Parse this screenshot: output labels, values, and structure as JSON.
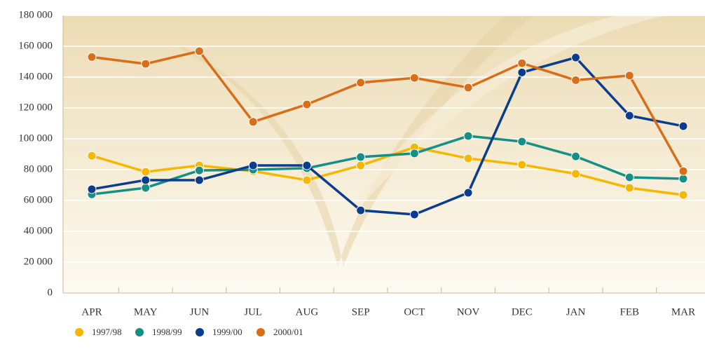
{
  "chart_data": {
    "type": "line",
    "categories": [
      "APR",
      "MAY",
      "JUN",
      "JUL",
      "AUG",
      "SEP",
      "OCT",
      "NOV",
      "DEC",
      "JAN",
      "FEB",
      "MAR"
    ],
    "series": [
      {
        "name": "1997/98",
        "color": "#f5b700",
        "values": [
          89000,
          78600,
          82700,
          79000,
          73200,
          82700,
          94500,
          87300,
          83200,
          77300,
          68200,
          63600
        ]
      },
      {
        "name": "1998/99",
        "color": "#168f87",
        "values": [
          64000,
          68200,
          79500,
          80000,
          80900,
          88200,
          90500,
          101800,
          98200,
          88600,
          75000,
          74100
        ]
      },
      {
        "name": "1999/00",
        "color": "#0c3c8c",
        "values": [
          67300,
          73200,
          73200,
          82700,
          82700,
          53600,
          50900,
          65000,
          143000,
          152700,
          115000,
          108200
        ]
      },
      {
        "name": "2000/01",
        "color": "#d86e1a",
        "values": [
          153000,
          148600,
          156800,
          111000,
          122300,
          136400,
          139500,
          133200,
          149000,
          138000,
          141000,
          79000
        ]
      }
    ],
    "ylim": [
      0,
      180000
    ],
    "yticks": [
      0,
      {
        "value": 20000,
        "label": "20 000"
      },
      {
        "value": 40000,
        "label": "40 000"
      },
      {
        "value": 60000,
        "label": "60 000"
      },
      {
        "value": 80000,
        "label": "80 000"
      },
      {
        "value": 100000,
        "label": "100 000"
      },
      {
        "value": 120000,
        "label": "120 000"
      },
      {
        "value": 140000,
        "label": "140 000"
      },
      {
        "value": 160000,
        "label": "160 000"
      },
      {
        "value": 180000,
        "label": "180 000"
      }
    ],
    "grid": true
  }
}
